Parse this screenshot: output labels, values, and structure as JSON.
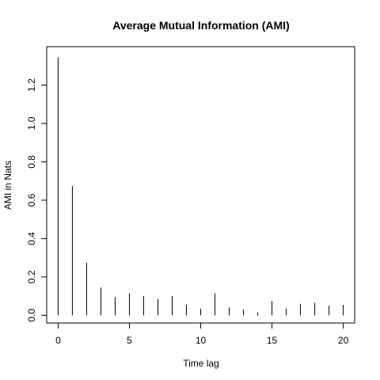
{
  "chart_data": {
    "type": "bar",
    "title": "Average Mutual Information (AMI)",
    "xlabel": "Time lag",
    "ylabel": "AMI in Nats",
    "x": [
      0,
      1,
      2,
      3,
      4,
      5,
      6,
      7,
      8,
      9,
      10,
      11,
      12,
      13,
      14,
      15,
      16,
      17,
      18,
      19,
      20
    ],
    "values": [
      1.345,
      0.675,
      0.275,
      0.145,
      0.095,
      0.115,
      0.1,
      0.085,
      0.1,
      0.055,
      0.035,
      0.115,
      0.04,
      0.03,
      0.015,
      0.075,
      0.035,
      0.06,
      0.065,
      0.05,
      0.055
    ],
    "xlim": [
      -0.8,
      20.8
    ],
    "ylim": [
      -0.04,
      1.4
    ],
    "xticks": [
      0,
      5,
      10,
      15,
      20
    ],
    "yticks": [
      0.0,
      0.2,
      0.4,
      0.6,
      0.8,
      1.0,
      1.2
    ],
    "ytick_labels": [
      "0.0",
      "0.2",
      "0.4",
      "0.6",
      "0.8",
      "1.0",
      "1.2"
    ],
    "grid": false,
    "legend": "none",
    "bar_style": "vertical-lines",
    "bar_color": "#000000"
  }
}
